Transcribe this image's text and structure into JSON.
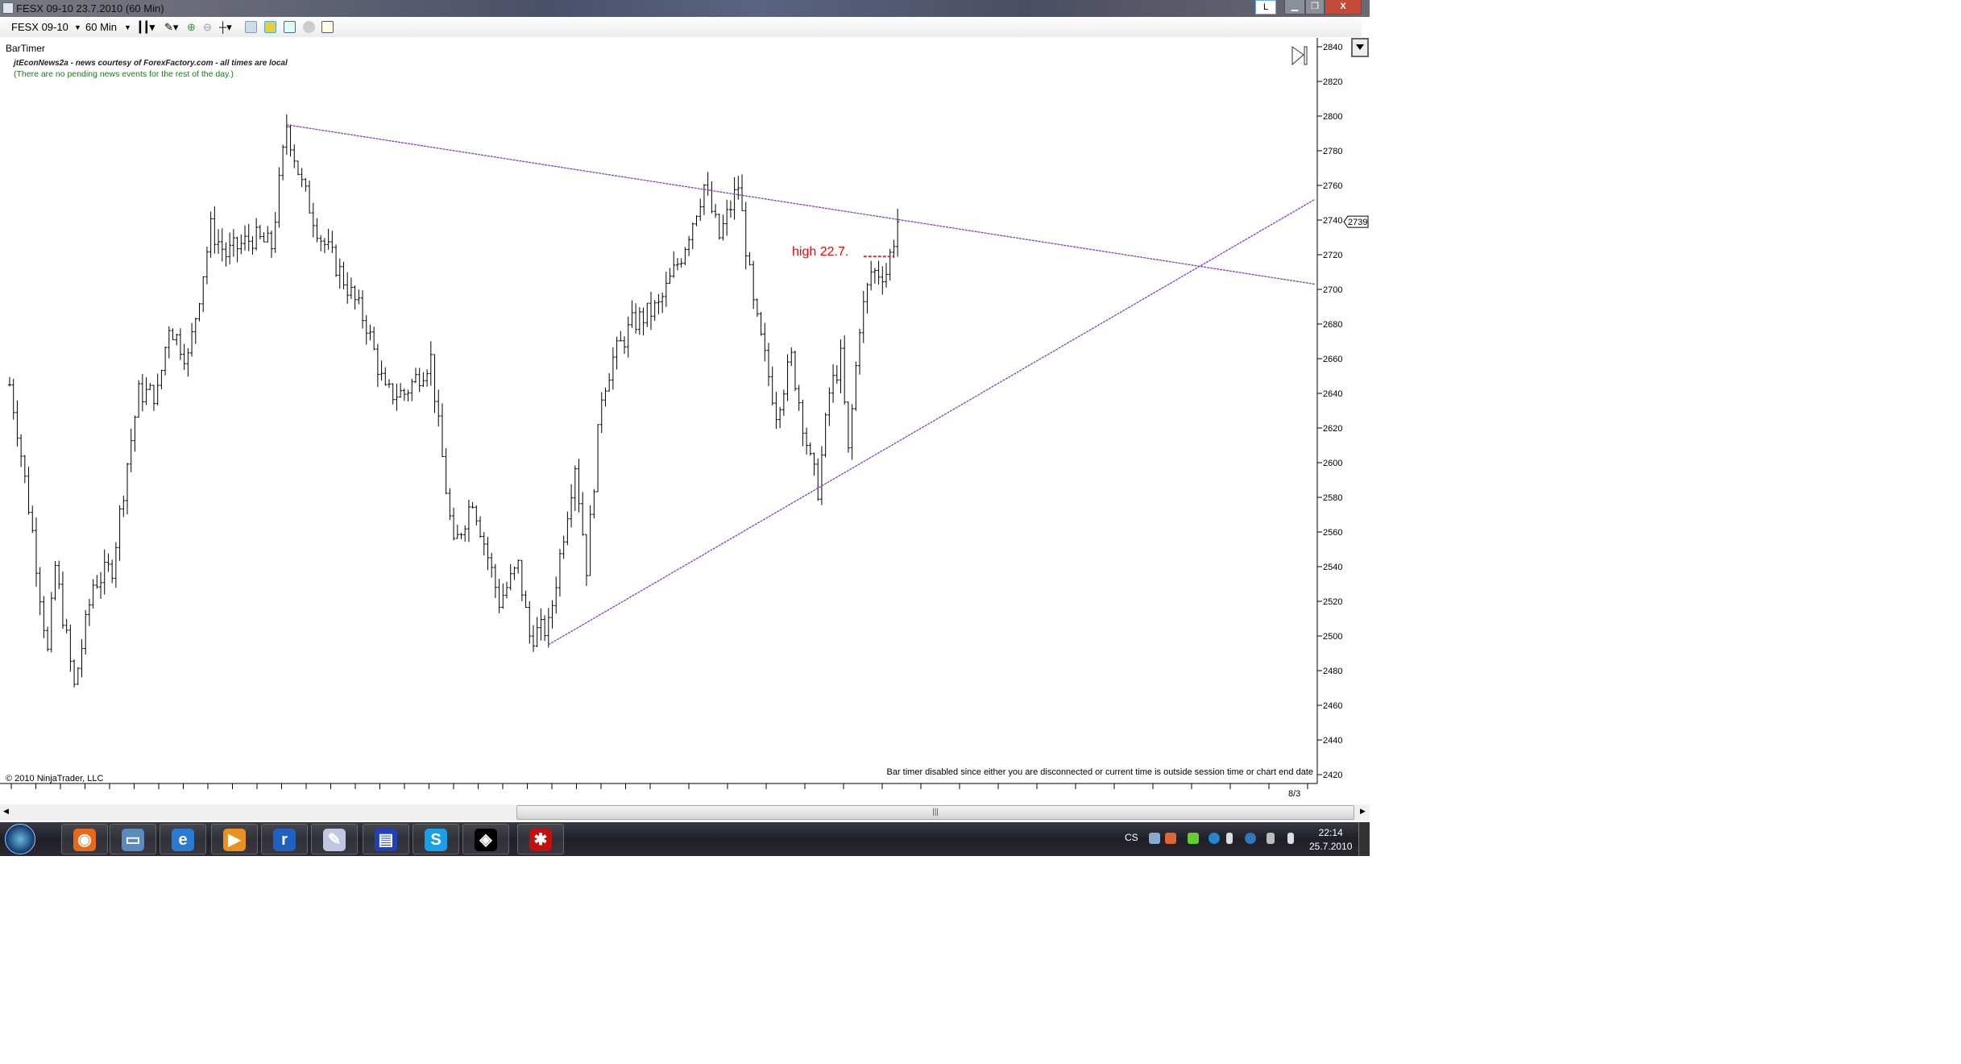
{
  "window": {
    "title": "FESX 09-10  23.7.2010 (60 Min)",
    "lang_indicator": "L",
    "controls": [
      "minimize",
      "restore",
      "close"
    ]
  },
  "toolbar": {
    "instrument": "FESX 09-10",
    "interval": "60 Min",
    "icons": [
      "bar-type-icon",
      "drawing-pencil-icon",
      "zoom-in-icon",
      "zoom-out-icon",
      "crosshair-icon",
      "data-box-icon",
      "strategy-icon",
      "indicators-icon",
      "currency-icon",
      "properties-icon"
    ]
  },
  "chart": {
    "bartimer_label": "BarTimer",
    "news_title": "jtEconNews2a - news courtesy of ForexFactory.com - all times are local",
    "news_status": "(There are no pending news events for the rest of the day.)",
    "copyright": "© 2010 NinjaTrader, LLC",
    "bartimer_msg": "Bar timer disabled since either you are disconnected or current time is outside session time or chart end date",
    "annotation": "high 22.7.",
    "last_price": "2739",
    "x_tick_label": "8/3",
    "colors": {
      "trendline": "#8040c0",
      "annotation": "#ff0000",
      "bars": "#000000"
    }
  },
  "chart_data": {
    "type": "ohlc",
    "ylim": [
      2420,
      2840
    ],
    "yticks": [
      2840,
      2820,
      2800,
      2780,
      2760,
      2740,
      2720,
      2700,
      2680,
      2660,
      2640,
      2620,
      2600,
      2580,
      2560,
      2540,
      2520,
      2500,
      2480,
      2460,
      2440,
      2420
    ],
    "xlabel_ticks": [
      "8/3"
    ],
    "price_path": [
      [
        0,
        2645
      ],
      [
        2,
        2620
      ],
      [
        6,
        2560
      ],
      [
        10,
        2490
      ],
      [
        12,
        2540
      ],
      [
        17,
        2470
      ],
      [
        22,
        2530
      ],
      [
        27,
        2540
      ],
      [
        31,
        2600
      ],
      [
        34,
        2640
      ],
      [
        39,
        2640
      ],
      [
        42,
        2680
      ],
      [
        47,
        2660
      ],
      [
        51,
        2710
      ],
      [
        53,
        2735
      ],
      [
        57,
        2720
      ],
      [
        64,
        2730
      ],
      [
        69,
        2725
      ],
      [
        73,
        2795
      ],
      [
        77,
        2760
      ],
      [
        82,
        2730
      ],
      [
        87,
        2710
      ],
      [
        94,
        2680
      ],
      [
        99,
        2640
      ],
      [
        104,
        2640
      ],
      [
        111,
        2660
      ],
      [
        113,
        2620
      ],
      [
        117,
        2550
      ],
      [
        122,
        2580
      ],
      [
        129,
        2520
      ],
      [
        134,
        2540
      ],
      [
        137,
        2500
      ],
      [
        142,
        2505
      ],
      [
        146,
        2560
      ],
      [
        149,
        2600
      ],
      [
        152,
        2540
      ],
      [
        156,
        2640
      ],
      [
        159,
        2660
      ],
      [
        164,
        2680
      ],
      [
        171,
        2690
      ],
      [
        177,
        2720
      ],
      [
        183,
        2760
      ],
      [
        187,
        2730
      ],
      [
        192,
        2760
      ],
      [
        196,
        2690
      ],
      [
        199,
        2660
      ],
      [
        202,
        2630
      ],
      [
        206,
        2660
      ],
      [
        211,
        2600
      ],
      [
        213,
        2585
      ],
      [
        216,
        2640
      ],
      [
        219,
        2660
      ],
      [
        221,
        2605
      ],
      [
        224,
        2680
      ],
      [
        227,
        2710
      ],
      [
        231,
        2710
      ],
      [
        234,
        2739
      ]
    ],
    "trendlines": [
      {
        "from": [
          73,
          2795
        ],
        "to": [
          344,
          2703
        ]
      },
      {
        "from": [
          142,
          2495
        ],
        "to": [
          344,
          2752
        ]
      }
    ],
    "hline": {
      "price": 2719,
      "from_bar": 225,
      "to_bar": 233,
      "label": "high 22.7."
    },
    "last_price": 2739
  },
  "taskbar": {
    "apps": [
      "firefox",
      "remote-desktop",
      "internet-explorer",
      "media-player",
      "realplayer",
      "paint",
      "save",
      "skype",
      "ninjatrader",
      "security"
    ],
    "lang": "CS",
    "time": "22:14",
    "date": "25.7.2010"
  }
}
